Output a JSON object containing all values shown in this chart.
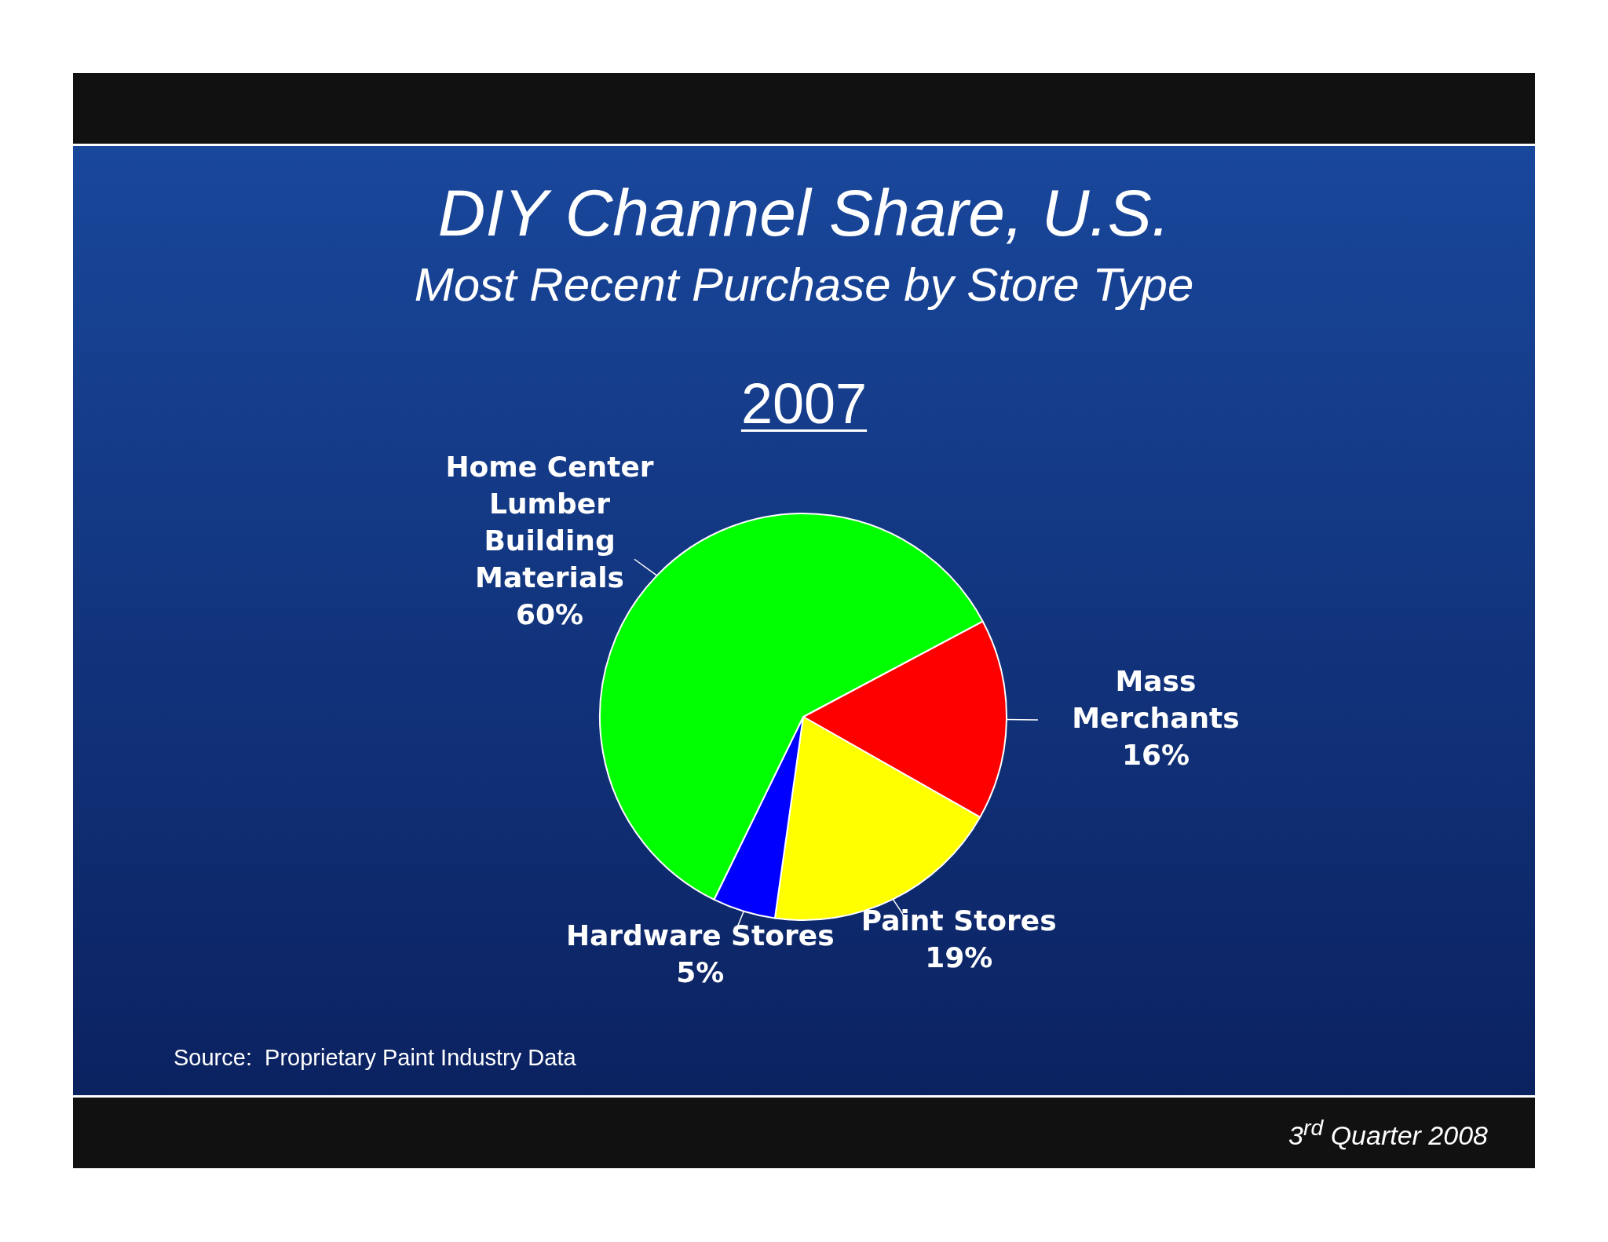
{
  "chart_data": {
    "type": "pie",
    "title": "DIY Channel Share, U.S.",
    "subtitle": "Most Recent Purchase by Store Type",
    "categories": [
      "Mass Merchants",
      "Paint Stores",
      "Hardware Stores",
      "Home Center Lumber Building Materials"
    ],
    "values": [
      16,
      19,
      5,
      60
    ],
    "colors": [
      "#ff0000",
      "#ffff00",
      "#0000ff",
      "#00ff00"
    ],
    "value_labels": [
      "16%",
      "19%",
      "5%",
      "60%"
    ],
    "legend": false,
    "annotations": [
      "2007",
      "Source:  Proprietary Paint Industry Data",
      "3$^{rd}$ Quarter 2008"
    ]
  }
}
